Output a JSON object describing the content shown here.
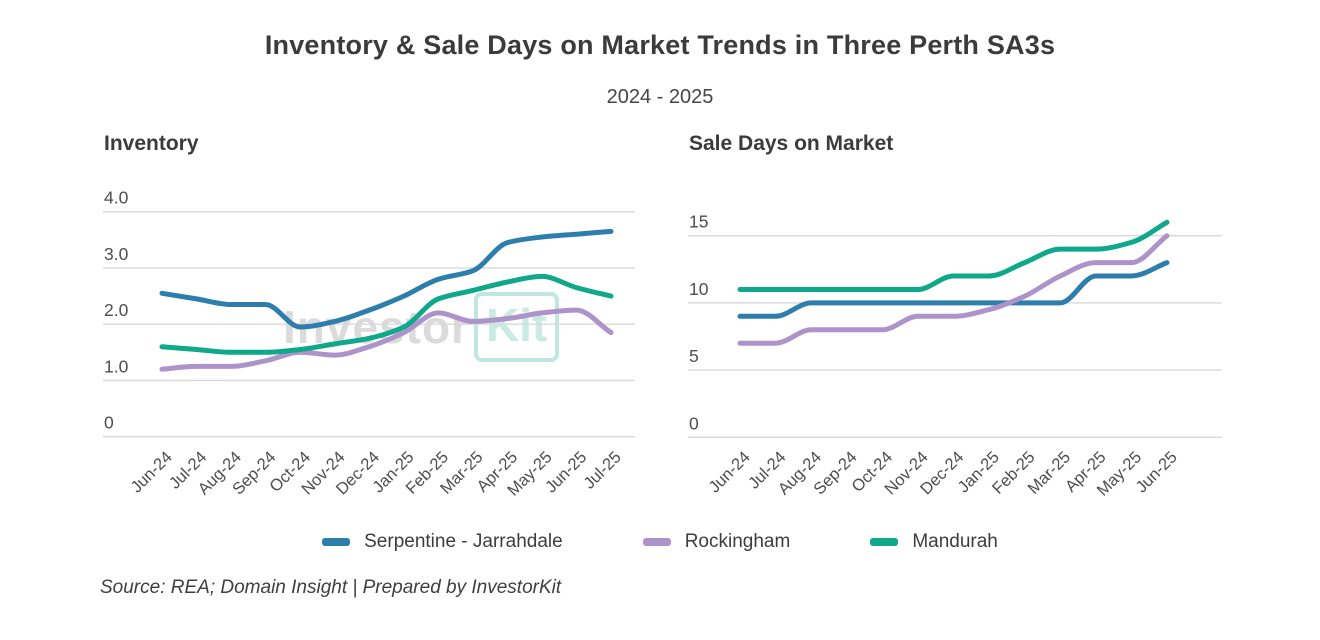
{
  "title": "Inventory & Sale Days on Market Trends in Three Perth SA3s",
  "subtitle": "2024 - 2025",
  "watermark": {
    "part1": "Investor",
    "part2": "Kit"
  },
  "source_note": "Source: REA; Domain Insight | Prepared by InvestorKit",
  "colors": {
    "serpentine": "#2d7dad",
    "rockingham": "#ae93cb",
    "mandurah": "#0fa88a",
    "gridline": "#d9d9d9",
    "tick_text": "#4e4e4e"
  },
  "legend": [
    {
      "label": "Serpentine - Jarrahdale",
      "color": "#2d7dad"
    },
    {
      "label": "Rockingham",
      "color": "#ae93cb"
    },
    {
      "label": "Mandurah",
      "color": "#0fa88a"
    }
  ],
  "chart_data": [
    {
      "type": "line",
      "title": "Inventory",
      "categories": [
        "Jun-24",
        "Jul-24",
        "Aug-24",
        "Sep-24",
        "Oct-24",
        "Nov-24",
        "Dec-24",
        "Jan-25",
        "Feb-25",
        "Mar-25",
        "Apr-25",
        "May-25",
        "Jun-25",
        "Jul-25"
      ],
      "series": [
        {
          "name": "Serpentine - Jarrahdale",
          "color": "#2d7dad",
          "values": [
            2.55,
            2.45,
            2.35,
            2.35,
            1.95,
            2.05,
            2.25,
            2.5,
            2.8,
            2.95,
            3.45,
            3.55,
            3.6,
            3.65
          ]
        },
        {
          "name": "Rockingham",
          "color": "#ae93cb",
          "values": [
            1.2,
            1.25,
            1.25,
            1.35,
            1.5,
            1.45,
            1.6,
            1.85,
            2.2,
            2.05,
            2.1,
            2.2,
            2.25,
            1.85
          ]
        },
        {
          "name": "Mandurah",
          "color": "#0fa88a",
          "values": [
            1.6,
            1.55,
            1.5,
            1.5,
            1.55,
            1.65,
            1.75,
            1.95,
            2.45,
            2.6,
            2.75,
            2.85,
            2.65,
            2.5
          ]
        }
      ],
      "ylim": [
        0,
        4.6
      ],
      "yticks": [
        0,
        1,
        2,
        3,
        4
      ],
      "ytick_labels": [
        "0",
        "1.0",
        "2.0",
        "3.0",
        "4.0"
      ],
      "grid": true,
      "legend_position": "bottom-shared"
    },
    {
      "type": "line",
      "title": "Sale Days on Market",
      "categories": [
        "Jun-24",
        "Jul-24",
        "Aug-24",
        "Sep-24",
        "Oct-24",
        "Nov-24",
        "Dec-24",
        "Jan-25",
        "Feb-25",
        "Mar-25",
        "Apr-25",
        "May-25",
        "Jun-25"
      ],
      "series": [
        {
          "name": "Serpentine - Jarrahdale",
          "color": "#2d7dad",
          "values": [
            9,
            9,
            10,
            10,
            10,
            10,
            10,
            10,
            10,
            10,
            12,
            12,
            13
          ]
        },
        {
          "name": "Rockingham",
          "color": "#ae93cb",
          "values": [
            7,
            7,
            8,
            8,
            8,
            9,
            9,
            9.5,
            10.5,
            12,
            13,
            13,
            15
          ]
        },
        {
          "name": "Mandurah",
          "color": "#0fa88a",
          "values": [
            11,
            11,
            11,
            11,
            11,
            11,
            12,
            12,
            13,
            14,
            14,
            14.5,
            16
          ]
        }
      ],
      "ylim": [
        0,
        17
      ],
      "yticks": [
        0,
        5,
        10,
        15
      ],
      "ytick_labels": [
        "0",
        "5",
        "10",
        "15"
      ],
      "grid": true,
      "legend_position": "bottom-shared"
    }
  ]
}
